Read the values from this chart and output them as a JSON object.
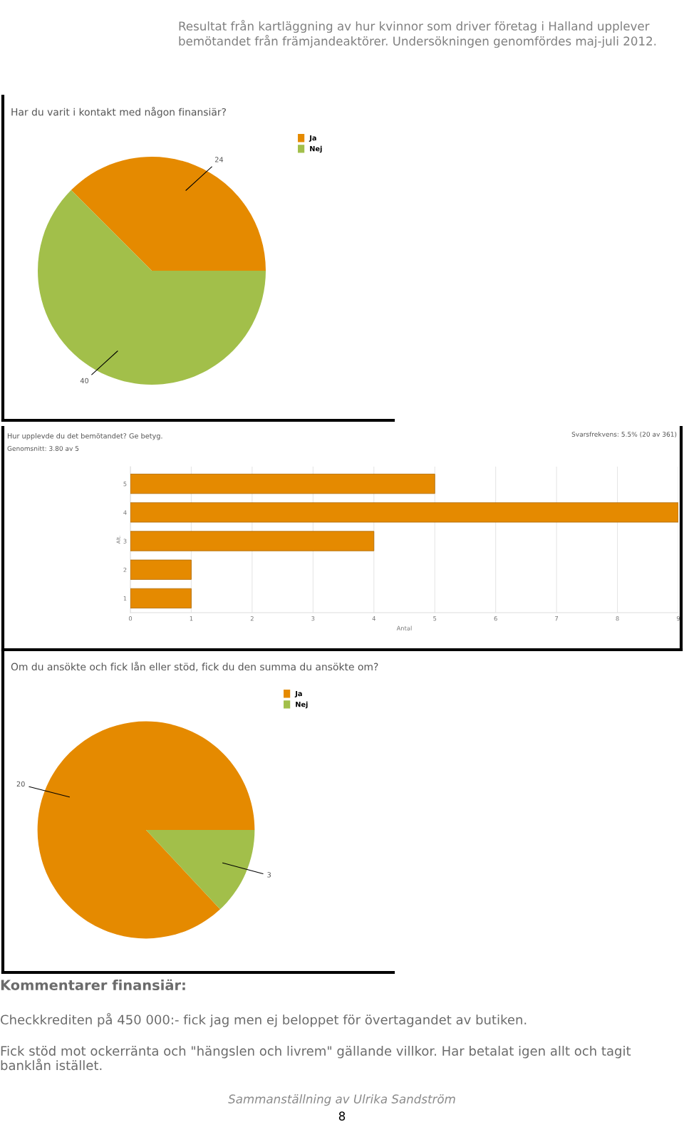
{
  "chart_data": [
    {
      "type": "pie",
      "title": "Har du varit i kontakt med någon finansiär?",
      "categories": [
        "Ja",
        "Nej"
      ],
      "values": [
        24,
        40
      ],
      "colors": [
        "#e58a00",
        "#a2bf4a"
      ],
      "data_labels": true,
      "legend": "top right",
      "annotations": [
        "Resultat från kartläggning av hur kvinnor som driver företag i Halland upplever bemötandet från främjandeaktörer. Undersökningen genomfördes maj-juli 2012."
      ]
    },
    {
      "type": "bar",
      "orientation": "horizontal",
      "title": "Hur upplevde du det bemötandet? Ge betyg.",
      "xlabel": "Antal",
      "ylabel": "Alt.",
      "categories": [
        "5",
        "4",
        "3",
        "2",
        "1"
      ],
      "values": [
        5,
        9,
        4,
        1,
        1
      ],
      "color": "#e58a00",
      "xlim": [
        0,
        9
      ],
      "xticks": [
        0,
        1,
        2,
        3,
        4,
        5,
        6,
        7,
        8,
        9
      ],
      "grid": "x",
      "annotations": [
        "Svarsfrekvens: 5.5% (20 av 361)",
        "Genomsnitt: 3.80 av 5"
      ]
    },
    {
      "type": "pie",
      "title": "Om du ansökte och fick lån eller stöd, fick du den summa du ansökte om?",
      "categories": [
        "Ja",
        "Nej"
      ],
      "values": [
        20,
        3
      ],
      "colors": [
        "#e58a00",
        "#a2bf4a"
      ],
      "data_labels": true,
      "legend": "top right",
      "annotations": [
        "Kommentarer finansiär:",
        "Checkkrediten på 450 000:- fick jag men ej beloppet för övertagandet av butiken.",
        "Fick stöd mot ockerränta och \"hängslen och livrem\" gällande villkor. Har betalat igen allt och tagit banklån istället.",
        "Sammanställning av Ulrika Sandström",
        "8"
      ]
    }
  ]
}
